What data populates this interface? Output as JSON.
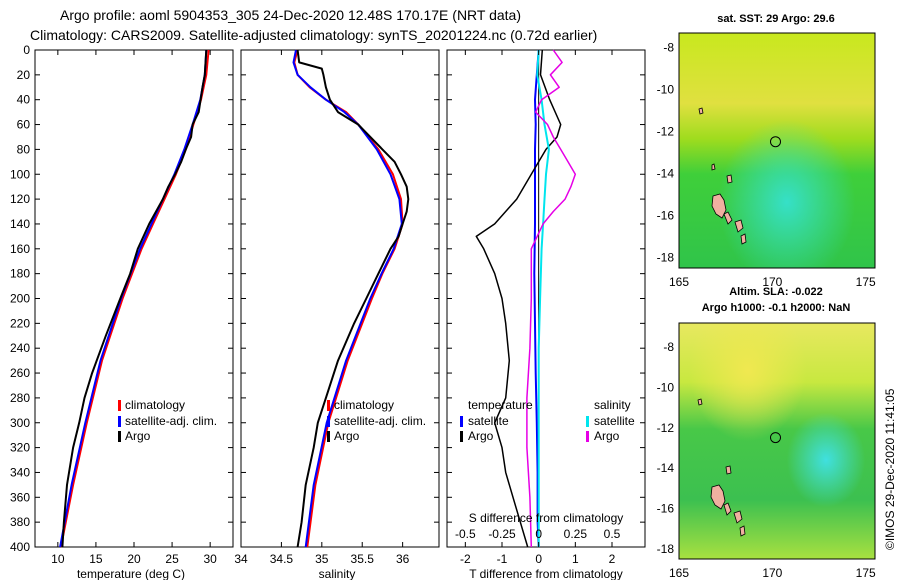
{
  "header": {
    "line1": "Argo profile: aoml 5904353_305 24-Dec-2020 12.48S 170.17E (NRT data)",
    "line2": "Climatology: CARS2009. Satellite-adjusted climatology: synTS_20201224.nc (0.72d earlier)"
  },
  "side_stamp": "©IMOS 29-Dec-2020 11:41:05",
  "colors": {
    "climatology": "#ff0000",
    "satellite": "#0000ff",
    "argo": "#000000",
    "sat_salinity": "#00e5ee",
    "argo_salinity": "#e600e6"
  },
  "chart_data": [
    {
      "type": "line",
      "id": "temperature",
      "xlabel": "temperature (deg C)",
      "xlim": [
        7,
        33
      ],
      "xticks": [
        "10",
        "15",
        "20",
        "25",
        "30"
      ],
      "xtick_values": [
        10,
        15,
        20,
        25,
        30
      ],
      "ylim": [
        0,
        400
      ],
      "yticks": [
        "0",
        "20",
        "40",
        "60",
        "80",
        "100",
        "120",
        "140",
        "160",
        "180",
        "200",
        "220",
        "240",
        "260",
        "280",
        "300",
        "320",
        "340",
        "360",
        "380",
        "400"
      ],
      "legend": [
        "climatology",
        "satellite-adj. clim.",
        "Argo"
      ],
      "series": [
        {
          "name": "climatology",
          "depth": [
            0,
            20,
            40,
            60,
            80,
            100,
            120,
            140,
            160,
            200,
            250,
            300,
            350,
            400
          ],
          "values": [
            29.8,
            29.5,
            28.8,
            27.8,
            26.8,
            25.5,
            24.0,
            22.5,
            21.0,
            18.5,
            15.8,
            13.8,
            12.0,
            10.4
          ]
        },
        {
          "name": "satellite-adj. clim.",
          "depth": [
            0,
            20,
            40,
            60,
            80,
            100,
            120,
            140,
            160,
            200,
            250,
            300,
            350,
            400
          ],
          "values": [
            29.5,
            29.3,
            28.7,
            27.7,
            26.6,
            25.3,
            23.8,
            22.3,
            20.8,
            18.3,
            15.6,
            13.6,
            11.8,
            10.3
          ]
        },
        {
          "name": "Argo",
          "depth": [
            0,
            20,
            30,
            50,
            60,
            70,
            80,
            90,
            100,
            110,
            120,
            140,
            160,
            180,
            200,
            230,
            260,
            280,
            300,
            320,
            350,
            380,
            400
          ],
          "values": [
            29.5,
            29.3,
            29.0,
            28.5,
            27.7,
            27.5,
            26.8,
            26.2,
            25.4,
            24.5,
            23.8,
            22.0,
            20.5,
            19.5,
            18.2,
            16.3,
            14.5,
            13.5,
            12.8,
            12.0,
            11.2,
            10.8,
            10.6
          ]
        }
      ]
    },
    {
      "type": "line",
      "id": "salinity",
      "xlabel": "salinity",
      "xlim": [
        34,
        36.45
      ],
      "xticks": [
        "34",
        "34.5",
        "35",
        "35.5",
        "36"
      ],
      "xtick_values": [
        34,
        34.5,
        35,
        35.5,
        36
      ],
      "ylim": [
        0,
        400
      ],
      "legend": [
        "climatology",
        "satellite-adj. clim.",
        "Argo"
      ],
      "series": [
        {
          "name": "climatology",
          "depth": [
            0,
            10,
            20,
            30,
            40,
            50,
            60,
            80,
            100,
            120,
            140,
            160,
            180,
            200,
            250,
            300,
            350,
            400
          ],
          "values": [
            34.7,
            34.66,
            34.7,
            34.85,
            35.05,
            35.3,
            35.45,
            35.7,
            35.88,
            35.98,
            36.0,
            35.9,
            35.75,
            35.62,
            35.32,
            35.08,
            34.92,
            34.82
          ]
        },
        {
          "name": "satellite-adj. clim.",
          "depth": [
            0,
            10,
            20,
            30,
            40,
            50,
            60,
            80,
            100,
            120,
            140,
            160,
            180,
            200,
            250,
            300,
            350,
            400
          ],
          "values": [
            34.68,
            34.65,
            34.7,
            34.86,
            35.05,
            35.28,
            35.45,
            35.68,
            35.85,
            35.96,
            35.99,
            35.89,
            35.74,
            35.6,
            35.3,
            35.06,
            34.9,
            34.8
          ]
        },
        {
          "name": "Argo",
          "depth": [
            0,
            10,
            15,
            20,
            30,
            40,
            50,
            60,
            70,
            80,
            90,
            100,
            110,
            120,
            130,
            140,
            150,
            160,
            180,
            200,
            220,
            250,
            280,
            300,
            320,
            350,
            380,
            400
          ],
          "values": [
            34.7,
            34.72,
            35.0,
            35.02,
            35.05,
            35.1,
            35.2,
            35.45,
            35.6,
            35.75,
            35.9,
            35.98,
            36.05,
            36.07,
            36.05,
            36.0,
            35.95,
            35.85,
            35.7,
            35.55,
            35.4,
            35.2,
            35.05,
            34.95,
            34.9,
            34.8,
            34.75,
            34.7
          ]
        }
      ]
    },
    {
      "type": "line",
      "id": "difference",
      "xlabel": "T difference from climatology",
      "xlabel_top": "S difference from climatology",
      "xlim": [
        -2.5,
        2.9
      ],
      "xticks": [
        "-2",
        "-1",
        "0",
        "1",
        "2"
      ],
      "xtick_values": [
        -2,
        -1,
        0,
        1,
        2
      ],
      "s_ticks": [
        "-0.5",
        "-0.25",
        "0",
        "0.25",
        "0.5"
      ],
      "s_tick_values": [
        -0.5,
        -0.25,
        0,
        0.25,
        0.5
      ],
      "ylim": [
        0,
        400
      ],
      "legend_temperature": {
        "title": "temperature",
        "items": [
          "satellite",
          "Argo"
        ]
      },
      "legend_salinity": {
        "title": "salinity",
        "items": [
          "satellite",
          "Argo"
        ]
      },
      "series": [
        {
          "name": "temperature satellite",
          "depth": [
            0,
            20,
            40,
            60,
            80,
            100,
            140,
            180,
            220,
            260,
            300,
            340,
            380,
            400
          ],
          "values": [
            0.0,
            -0.05,
            -0.1,
            -0.08,
            -0.1,
            -0.1,
            -0.1,
            -0.12,
            -0.1,
            -0.08,
            -0.05,
            -0.03,
            -0.03,
            0.0
          ]
        },
        {
          "name": "temperature Argo",
          "depth": [
            0,
            20,
            40,
            60,
            70,
            80,
            100,
            120,
            140,
            150,
            160,
            180,
            200,
            220,
            250,
            280,
            300,
            320,
            340,
            360,
            380,
            400
          ],
          "values": [
            0.1,
            0.05,
            0.3,
            0.6,
            0.5,
            0.2,
            -0.2,
            -0.6,
            -1.2,
            -1.7,
            -1.5,
            -1.2,
            -1.0,
            -0.9,
            -0.8,
            -0.9,
            -1.2,
            -1.0,
            -0.9,
            -0.7,
            -0.5,
            -0.3
          ]
        },
        {
          "name": "salinity satellite",
          "depth": [
            0,
            20,
            40,
            60,
            80,
            100,
            120,
            140,
            160,
            200,
            240,
            280,
            320,
            360,
            400
          ],
          "values": [
            0.0,
            -0.01,
            0.02,
            0.04,
            0.07,
            0.05,
            0.04,
            0.03,
            0.02,
            0.01,
            0.0,
            0.0,
            0.0,
            0.0,
            0.0
          ]
        },
        {
          "name": "salinity Argo",
          "depth": [
            0,
            10,
            20,
            30,
            40,
            50,
            60,
            70,
            80,
            90,
            100,
            110,
            120,
            130,
            140,
            160,
            180,
            200,
            240,
            280,
            320,
            360,
            400
          ],
          "values": [
            0.1,
            0.16,
            0.08,
            0.14,
            0.02,
            -0.02,
            0.06,
            0.1,
            0.15,
            0.2,
            0.25,
            0.22,
            0.18,
            0.1,
            0.03,
            -0.05,
            -0.05,
            -0.05,
            -0.06,
            -0.08,
            -0.08,
            -0.06,
            -0.05
          ]
        }
      ]
    },
    {
      "type": "heatmap",
      "id": "sst_map",
      "title": "sat. SST: 29 Argo: 29.6",
      "xticks": [
        "165",
        "170",
        "175"
      ],
      "xtick_values": [
        165,
        170,
        175
      ],
      "yticks": [
        "-8",
        "-10",
        "-12",
        "-14",
        "-16",
        "-18"
      ],
      "ytick_values": [
        -8,
        -10,
        -12,
        -14,
        -16,
        -18
      ],
      "xlim": [
        165,
        175.5
      ],
      "ylim": [
        -18.5,
        -7.3
      ],
      "marker": {
        "lon": 170.17,
        "lat": -12.48
      }
    },
    {
      "type": "heatmap",
      "id": "sla_map",
      "title_line1": "Altim. SLA: -0.022",
      "title_line2": "Argo h1000: -0.1 h2000: NaN",
      "xticks": [
        "165",
        "170",
        "175"
      ],
      "xtick_values": [
        165,
        170,
        175
      ],
      "yticks": [
        "-8",
        "-10",
        "-12",
        "-14",
        "-16",
        "-18"
      ],
      "ytick_values": [
        -8,
        -10,
        -12,
        -14,
        -16,
        -18
      ],
      "xlim": [
        165,
        175.5
      ],
      "ylim": [
        -18.5,
        -6.8
      ],
      "marker": {
        "lon": 170.17,
        "lat": -12.48
      }
    }
  ]
}
